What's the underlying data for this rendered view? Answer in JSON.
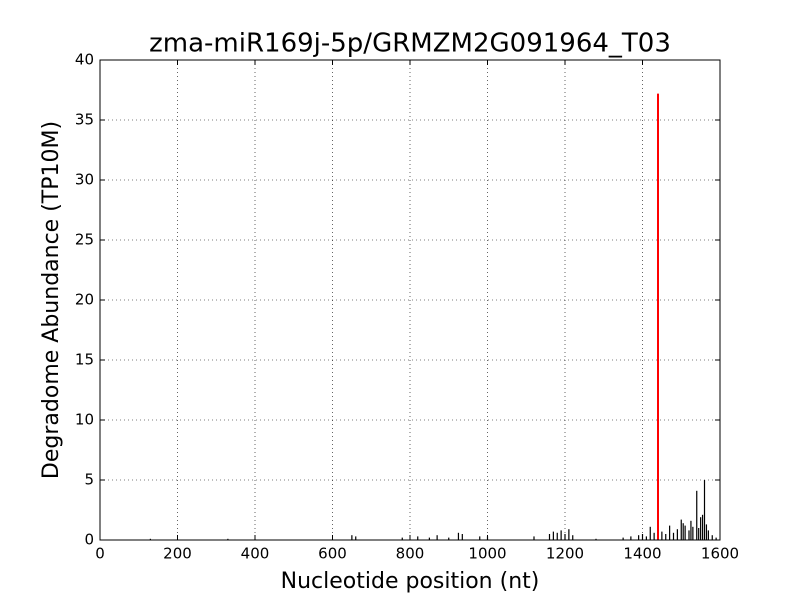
{
  "chart_data": {
    "type": "stem",
    "title": "zma-miR169j-5p/GRMZM2G091964_T03",
    "x_label": "Nucleotide position (nt)",
    "y_label": "Degradome Abundance (TP10M)",
    "xlim": [
      0,
      1600
    ],
    "xticks": [
      0,
      200,
      400,
      600,
      800,
      1000,
      1200,
      1400,
      1600
    ],
    "ylim": [
      0,
      40
    ],
    "yticks": [
      0,
      5,
      10,
      15,
      20,
      25,
      30,
      35,
      40
    ],
    "grid": true,
    "series": [
      {
        "color": "#000000",
        "x": [
          130,
          330,
          650,
          660,
          780,
          820,
          850,
          870,
          900,
          925,
          935,
          980,
          1000,
          1120,
          1160,
          1170,
          1180,
          1190,
          1200,
          1210,
          1220,
          1280,
          1350,
          1370,
          1390,
          1400,
          1410,
          1420,
          1430,
          1450,
          1460,
          1470,
          1480,
          1490,
          1500,
          1505,
          1510,
          1520,
          1525,
          1530,
          1540,
          1545,
          1550,
          1555,
          1560,
          1565,
          1570,
          1580,
          1590
        ],
        "values": [
          0.1,
          0.1,
          0.4,
          0.3,
          0.2,
          0.3,
          0.2,
          0.4,
          0.2,
          0.6,
          0.5,
          0.3,
          0.3,
          0.3,
          0.5,
          0.7,
          0.6,
          0.8,
          0.5,
          0.9,
          0.4,
          0.1,
          0.2,
          0.3,
          0.4,
          0.5,
          0.3,
          1.1,
          0.6,
          0.7,
          0.5,
          1.2,
          0.6,
          0.9,
          1.7,
          1.4,
          1.2,
          0.8,
          1.6,
          1.1,
          4.1,
          1.0,
          1.9,
          2.1,
          5.0,
          1.3,
          0.8,
          0.4,
          0.2
        ]
      },
      {
        "color": "#ff0000",
        "x": [
          1440
        ],
        "values": [
          37.2
        ]
      }
    ]
  }
}
